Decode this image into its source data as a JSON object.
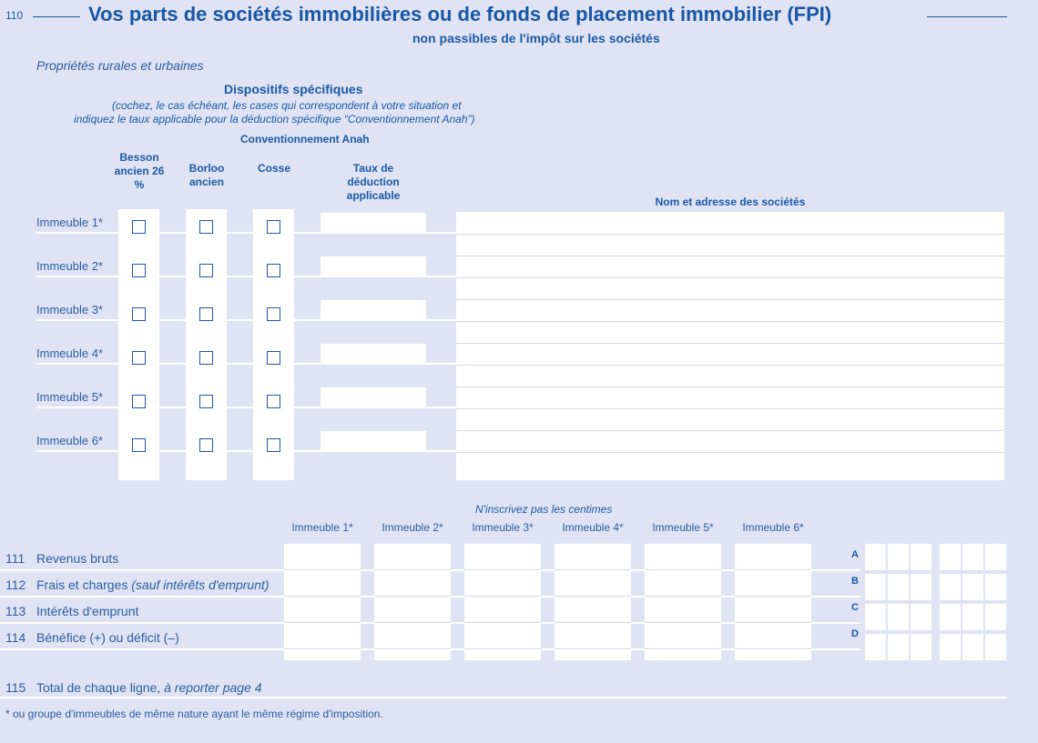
{
  "section_number": "110",
  "title": "Vos parts de sociétés immobilières ou de fonds de placement immobilier (FPI)",
  "subtitle": "non passibles de l'impôt sur les sociétés",
  "category": "Propriétés rurales et urbaines",
  "dispositifs": {
    "heading": "Dispositifs spécifiques",
    "note_line1": "(cochez, le cas échéant, les cases qui correspondent à votre situation et",
    "note_line2": "indiquez le taux applicable pour la déduction spécifique “Conventionnement Anah”)",
    "group_label": "Conventionnement Anah"
  },
  "columns": {
    "besson": "Besson ancien 26 %",
    "borloo": "Borloo ancien",
    "cosse": "Cosse",
    "taux": "Taux de déduction applicable",
    "nom": "Nom et adresse des sociétés"
  },
  "immeubles": [
    "Immeuble 1*",
    "Immeuble 2*",
    "Immeuble 3*",
    "Immeuble 4*",
    "Immeuble 5*",
    "Immeuble 6*"
  ],
  "amounts": {
    "note": "N'inscrivez pas les centimes",
    "rows": [
      {
        "num": "111",
        "label": "Revenus bruts",
        "italic": "",
        "letter": "A"
      },
      {
        "num": "112",
        "label": "Frais et charges ",
        "italic": "(sauf intérêts d'emprunt)",
        "letter": "B"
      },
      {
        "num": "113",
        "label": "Intérêts d'emprunt",
        "italic": "",
        "letter": "C"
      },
      {
        "num": "114",
        "label": "Bénéfice (+) ou déficit (–)",
        "italic": "",
        "letter": "D"
      }
    ],
    "total": {
      "num": "115",
      "label": "Total de chaque ligne, ",
      "italic": "à reporter page 4"
    }
  },
  "footnote": "* ou groupe d'immeubles de même nature ayant le même régime d'imposition."
}
